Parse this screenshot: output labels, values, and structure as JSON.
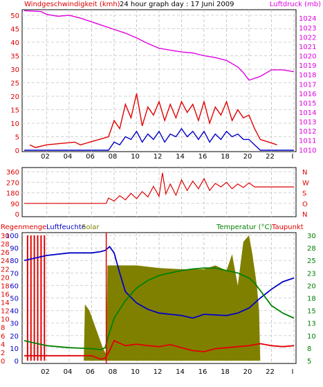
{
  "chart_data": [
    {
      "type": "line",
      "title": "24 hour graph day : 17 Juni 2009",
      "left_label": "Windgeschwindigkeit (kmh)",
      "right_label": "Luftdruck (mb)",
      "x_ticks": [
        "02",
        "04",
        "06",
        "08",
        "10",
        "12",
        "14",
        "16",
        "18",
        "20",
        "22",
        "I"
      ],
      "y_left_ticks": [
        0,
        5,
        10,
        15,
        20,
        25,
        30,
        35,
        40,
        45,
        50
      ],
      "y_left_range": [
        0,
        50
      ],
      "y_right_ticks": [
        1010,
        1011,
        1012,
        1013,
        1014,
        1015,
        1016,
        1017,
        1018,
        1019,
        1020,
        1021,
        1022,
        1023,
        1024
      ],
      "y_right_range": [
        1009.8,
        1024.9
      ],
      "series": [
        {
          "id": "pressure",
          "axis": "right",
          "color": "#e000e0",
          "x": [
            0,
            1.5,
            2,
            3,
            4,
            5,
            6,
            7,
            8,
            9,
            10,
            11,
            12,
            13,
            14,
            15,
            16,
            17,
            18,
            19,
            19.5,
            20,
            21,
            22,
            23,
            24
          ],
          "y": [
            1024.8,
            1024.7,
            1024.4,
            1024.2,
            1024.3,
            1024.0,
            1023.6,
            1023.2,
            1022.8,
            1022.4,
            1021.9,
            1021.3,
            1020.8,
            1020.6,
            1020.4,
            1020.3,
            1020.0,
            1019.8,
            1019.5,
            1018.8,
            1018.2,
            1017.4,
            1017.8,
            1018.5,
            1018.5,
            1018.3
          ]
        },
        {
          "id": "wind-gust",
          "axis": "left",
          "color": "#e00000",
          "x": [
            0.5,
            1,
            2,
            4.5,
            5,
            7.5,
            8,
            8.5,
            9,
            9.5,
            10,
            10.5,
            11,
            11.5,
            12,
            12.5,
            13,
            13.5,
            14,
            14.5,
            15,
            15.5,
            16,
            16.5,
            17,
            17.5,
            18,
            18.5,
            19,
            19.5,
            20,
            20.5,
            21,
            22.5
          ],
          "y": [
            2,
            1,
            2,
            3,
            2,
            5,
            11,
            8,
            17,
            12,
            21,
            9,
            16,
            13,
            18,
            11,
            17,
            12,
            18,
            14,
            17,
            11,
            18,
            10,
            16,
            13,
            18,
            11,
            15,
            12,
            13,
            8,
            4,
            2
          ]
        },
        {
          "id": "wind-avg",
          "axis": "left",
          "color": "#0000c8",
          "x": [
            0,
            7.5,
            8,
            8.5,
            9,
            9.5,
            10,
            10.5,
            11,
            11.5,
            12,
            12.5,
            13,
            13.5,
            14,
            14.5,
            15,
            15.5,
            16,
            16.5,
            17,
            17.5,
            18,
            18.5,
            19,
            19.5,
            20,
            20.5,
            21,
            24
          ],
          "y": [
            0,
            0,
            3,
            2,
            5,
            4,
            7,
            3,
            6,
            4,
            7,
            3,
            6,
            5,
            8,
            5,
            7,
            4,
            7,
            3,
            6,
            4,
            7,
            5,
            6,
            4,
            4,
            2,
            0,
            0
          ]
        }
      ]
    },
    {
      "type": "line",
      "title": "",
      "y_left_ticks": [
        0,
        90,
        180,
        270,
        360
      ],
      "y_left_range": [
        0,
        360
      ],
      "y_right_ticks": [
        "N",
        "W",
        "S",
        "O",
        "N"
      ],
      "series": [
        {
          "id": "wind-direction",
          "color": "#e00000",
          "x": [
            0,
            7.3,
            7.5,
            8,
            8.5,
            9,
            9.5,
            10,
            10.5,
            11,
            11.5,
            12,
            12.3,
            12.6,
            13,
            13.5,
            14,
            14.5,
            15,
            15.5,
            16,
            16.5,
            17,
            17.5,
            18,
            18.5,
            19,
            19.5,
            20,
            20.5,
            21,
            22,
            24
          ],
          "y": [
            90,
            90,
            135,
            110,
            155,
            120,
            175,
            130,
            190,
            145,
            235,
            150,
            350,
            170,
            255,
            160,
            290,
            200,
            280,
            215,
            300,
            200,
            260,
            230,
            270,
            215,
            255,
            225,
            265,
            230,
            230,
            230,
            230
          ]
        }
      ]
    },
    {
      "type": "area",
      "title": "",
      "labels": [
        "Regenmenge",
        "Luftfeuchte",
        "Solar",
        "Temperatur (°C)",
        "Taupunkt"
      ],
      "y_rain_ticks": [
        0,
        2,
        4,
        6,
        8,
        10,
        12,
        14,
        16,
        18,
        20,
        22,
        24,
        26,
        28,
        30
      ],
      "y_humidity_ticks": [
        0,
        10,
        20,
        30,
        40,
        50,
        60,
        70,
        80,
        90,
        100
      ],
      "y_temp_ticks": [
        5,
        8,
        10,
        13,
        15,
        18,
        20,
        23,
        25,
        28,
        30
      ],
      "y_humidity_range": [
        0,
        100
      ],
      "y_temp_range": [
        5,
        30
      ],
      "series": [
        {
          "id": "solar",
          "color": "#808000",
          "axis": "humidity",
          "x": [
            0,
            5.3,
            5.4,
            5.8,
            6.2,
            6.6,
            7,
            7.3,
            7.4,
            10,
            12,
            14,
            16,
            17,
            18,
            18.5,
            19,
            19.5,
            20,
            20.3,
            20.7,
            20.9,
            21,
            24
          ],
          "y": [
            0,
            0,
            45,
            40,
            30,
            20,
            10,
            5,
            76,
            76,
            74,
            73,
            73,
            76,
            72,
            85,
            60,
            95,
            100,
            85,
            60,
            40,
            0,
            0
          ]
        },
        {
          "id": "rain",
          "color": "#e00000",
          "axis": "humidity",
          "x": [
            0.3,
            0.6,
            0.9,
            1.2,
            1.5,
            1.8
          ],
          "y": [
            100,
            100,
            100,
            100,
            100,
            100
          ]
        },
        {
          "id": "humidity",
          "color": "#0000c8",
          "axis": "humidity",
          "x": [
            0,
            1,
            2,
            4,
            6,
            6.8,
            7.2,
            7.6,
            8,
            8.5,
            9,
            10,
            11,
            12,
            14,
            15,
            16,
            18,
            19,
            20,
            21,
            22,
            23,
            24
          ],
          "y": [
            80,
            82,
            84,
            86,
            86,
            87,
            88,
            91,
            86,
            70,
            55,
            46,
            41,
            38,
            36,
            34,
            37,
            36,
            38,
            42,
            50,
            57,
            63,
            66
          ]
        },
        {
          "id": "temperature",
          "color": "#008000",
          "axis": "temp",
          "x": [
            0,
            1,
            2,
            4,
            6,
            6.8,
            7.2,
            7.5,
            8,
            9,
            10,
            11,
            12,
            13,
            14,
            15,
            16,
            17,
            18,
            19,
            20,
            20.5,
            21,
            22,
            23,
            24
          ],
          "y": [
            9.0,
            8.5,
            8.0,
            7.6,
            7.4,
            7.2,
            7.6,
            10.0,
            13.5,
            17.0,
            19.5,
            21.0,
            22.0,
            22.5,
            23.0,
            23.3,
            23.5,
            23.5,
            23.0,
            22.5,
            21.5,
            20.5,
            19.0,
            16.0,
            14.5,
            13.5
          ]
        },
        {
          "id": "dewpoint",
          "color": "#e00000",
          "axis": "temp",
          "x": [
            0,
            2,
            4,
            6,
            6.8,
            7.2,
            7.6,
            8,
            8.5,
            9,
            10,
            11,
            12,
            13,
            14,
            15,
            16,
            17,
            18,
            19,
            20,
            21,
            22,
            23,
            24
          ],
          "y": [
            6.0,
            6.0,
            6.0,
            6.0,
            5.3,
            5.5,
            7.0,
            9.0,
            8.5,
            8.0,
            8.3,
            8.0,
            7.8,
            8.2,
            7.6,
            7.0,
            6.8,
            7.4,
            7.6,
            7.8,
            8.0,
            8.4,
            8.0,
            7.8,
            8.0
          ]
        }
      ]
    }
  ]
}
